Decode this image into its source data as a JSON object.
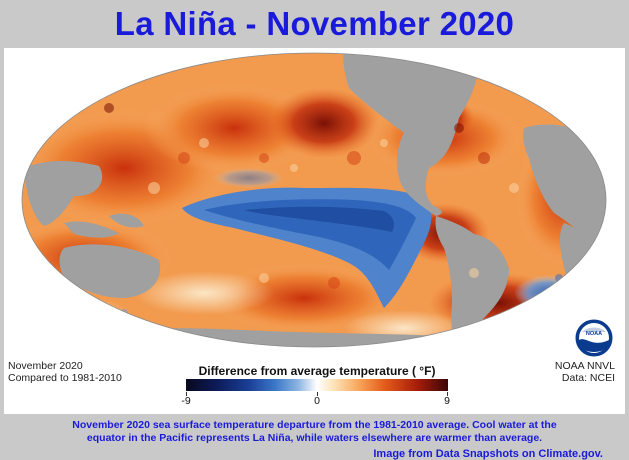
{
  "title": "La Niña - November 2020",
  "map": {
    "projection": "Mollweide (ellipse)",
    "land_color": "#a0a0a0",
    "background_color": "#ffffff"
  },
  "legend": {
    "title": "Difference from average temperature  ( °F)",
    "tick_labels": [
      "-9",
      "0",
      "9"
    ],
    "range": [
      -9,
      9
    ],
    "colors": [
      "#08081e",
      "#1a3f96",
      "#8fb6e2",
      "#ffffff",
      "#f8a55a",
      "#a81e0a",
      "#3c0606"
    ]
  },
  "left_note": {
    "line1": "November 2020",
    "line2": "Compared to 1981-2010"
  },
  "right_note": {
    "line1": "NOAA NNVL",
    "line2": "Data: NCEI"
  },
  "logo": {
    "icon": "noaa-logo",
    "text": "NOAA"
  },
  "credit": "Image from Data Snapshots on Climate.gov.",
  "caption": {
    "line1": "November 2020 sea surface temperature departure from the 1981-2010 average. Cool water at the",
    "line2": "equator in the Pacific represents La Niña, while waters elsewhere are warmer than average."
  }
}
